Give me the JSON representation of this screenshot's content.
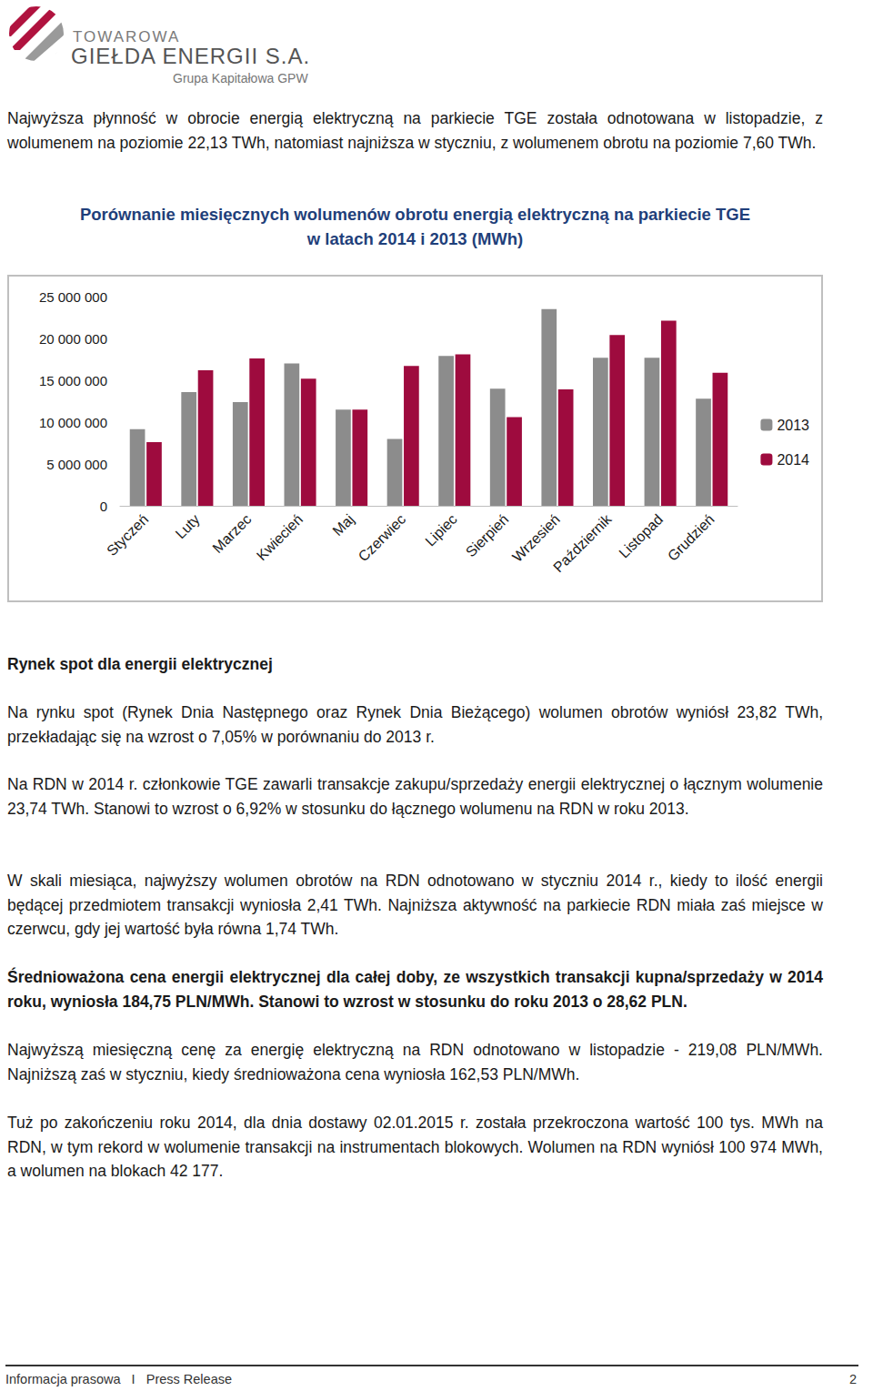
{
  "header": {
    "line1": "TOWAROWA",
    "line2": "GIEŁDA ENERGII S.A.",
    "group": "Grupa Kapitałowa GPW"
  },
  "intro": "Najwyższa płynność w obrocie energią elektryczną na parkiecie TGE została odnotowana w listopadzie, z wolumenem na poziomie 22,13 TWh, natomiast najniższa w styczniu, z wolumenem obrotu na poziomie 7,60 TWh.",
  "chart_data": {
    "type": "bar",
    "title": [
      "Porównanie miesięcznych wolumenów obrotu energią elektryczną na parkiecie TGE",
      "w latach 2014 i 2013 (MWh)"
    ],
    "categories": [
      "Styczeń",
      "Luty",
      "Marzec",
      "Kwiecień",
      "Maj",
      "Czerwiec",
      "Lipiec",
      "Sierpień",
      "Wrzesień",
      "Październik",
      "Listopad",
      "Grudzień"
    ],
    "series": [
      {
        "name": "2013",
        "color": "#8c8c8c",
        "values": [
          9170000,
          13600000,
          12400000,
          17000000,
          11500000,
          8000000,
          17900000,
          14000000,
          23500000,
          17700000,
          17700000,
          12800000
        ]
      },
      {
        "name": "2014",
        "color": "#9e0b3e",
        "values": [
          7600000,
          16200000,
          17600000,
          15200000,
          11500000,
          16700000,
          18100000,
          10600000,
          13900000,
          20400000,
          22130000,
          15900000
        ]
      }
    ],
    "ylim": [
      0,
      25000000
    ],
    "yticks": [
      0,
      {
        "value": 5000000,
        "label": "5 000 000"
      },
      {
        "value": 10000000,
        "label": "10 000 000"
      },
      {
        "value": 15000000,
        "label": "15 000 000"
      },
      {
        "value": 20000000,
        "label": "20 000 000"
      },
      {
        "value": 25000000,
        "label": "25 000 000"
      }
    ],
    "grid": false,
    "legend": "right"
  },
  "heading": "Rynek spot dla energii elektrycznej",
  "paragraphs": [
    {
      "text": "Na rynku spot (Rynek Dnia Następnego oraz Rynek Dnia Bieżącego) wolumen obrotów wyniósł 23,82 TWh, przekładając się na wzrost o 7,05% w porównaniu do 2013 r.",
      "bold": false
    },
    {
      "text": "Na RDN w 2014 r. członkowie TGE zawarli transakcje zakupu/sprzedaży energii elektrycznej o łącznym wolumenie  23,74 TWh. Stanowi to wzrost o 6,92% w stosunku do łącznego wolumenu na RDN w roku 2013.",
      "bold": false
    },
    {
      "text": "W skali miesiąca, najwyższy wolumen obrotów na RDN odnotowano w styczniu 2014 r., kiedy to ilość energii będącej przedmiotem transakcji wyniosła 2,41 TWh. Najniższa aktywność na parkiecie RDN miała zaś miejsce w czerwcu, gdy jej wartość była równa 1,74 TWh.",
      "bold": false
    },
    {
      "text": "Średnioważona cena energii elektrycznej dla całej doby, ze wszystkich transakcji kupna/sprzedaży w 2014 roku, wyniosła 184,75 PLN/MWh. Stanowi to wzrost w stosunku do roku 2013 o 28,62 PLN.",
      "bold": true
    },
    {
      "text": "Najwyższą miesięczną cenę za energię elektryczną na RDN odnotowano w listopadzie - 219,08 PLN/MWh. Najniższą zaś w styczniu, kiedy średnioważona cena wyniosła 162,53 PLN/MWh.",
      "bold": false
    },
    {
      "text": "Tuż po zakończeniu roku 2014, dla dnia dostawy 02.01.2015 r. została przekroczona wartość 100 tys. MWh na RDN, w tym rekord w wolumenie transakcji na instrumentach blokowych. Wolumen na RDN wyniósł 100 974 MWh, a wolumen na blokach 42 177.",
      "bold": false
    }
  ],
  "footer": {
    "left": "Informacja prasowa   I   Press Release",
    "page": "2"
  }
}
